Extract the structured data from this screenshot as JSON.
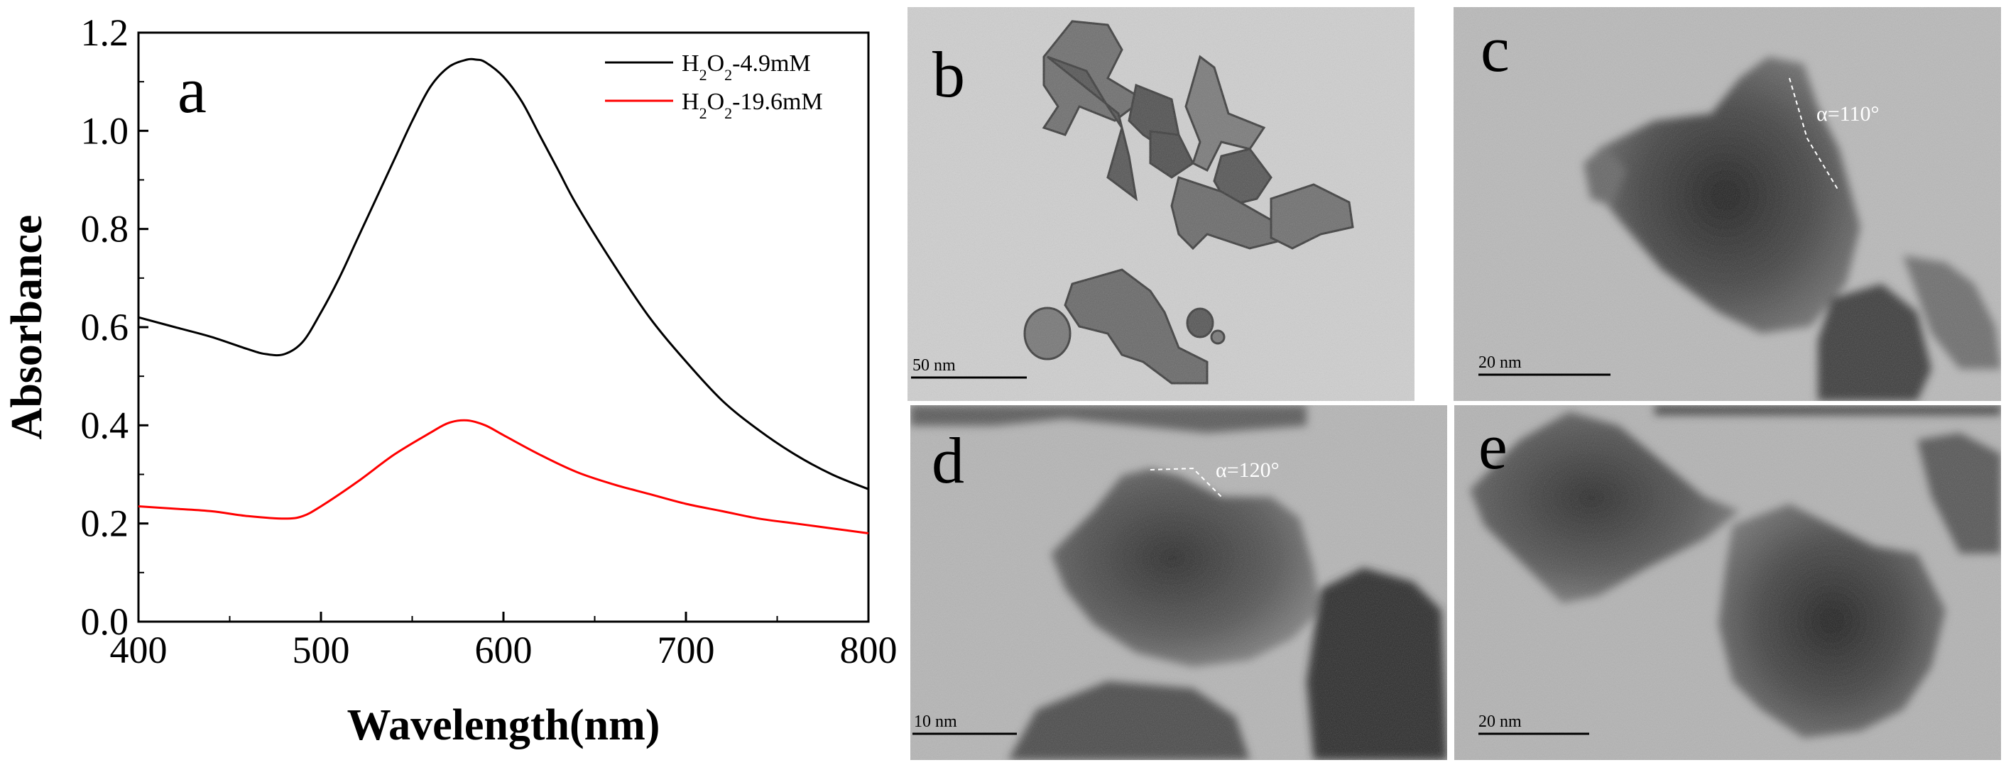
{
  "chart_data": {
    "type": "line",
    "panel_label": "a",
    "xlabel": "Wavelength(nm)",
    "ylabel": "Absorbance",
    "xlim": [
      400,
      800
    ],
    "ylim": [
      0.0,
      1.2
    ],
    "x_ticks": [
      "400",
      "500",
      "600",
      "700",
      "800"
    ],
    "y_ticks": [
      "0.0",
      "0.2",
      "0.4",
      "0.6",
      "0.8",
      "1.0",
      "1.2"
    ],
    "grid": false,
    "legend_position": "top-right",
    "series": [
      {
        "name": "H2O2-4.9mM",
        "legend_main": "H",
        "legend_sub1": "2",
        "legend_mid": "O",
        "legend_sub2": "2",
        "legend_tail": "-4.9mM",
        "color": "#000000",
        "x": [
          400,
          420,
          440,
          460,
          470,
          480,
          490,
          500,
          510,
          520,
          530,
          540,
          550,
          560,
          570,
          580,
          585,
          590,
          600,
          610,
          620,
          630,
          640,
          660,
          680,
          700,
          720,
          740,
          760,
          780,
          800
        ],
        "values": [
          0.62,
          0.6,
          0.58,
          0.555,
          0.545,
          0.545,
          0.57,
          0.63,
          0.7,
          0.78,
          0.86,
          0.94,
          1.02,
          1.09,
          1.13,
          1.145,
          1.145,
          1.14,
          1.11,
          1.06,
          0.99,
          0.92,
          0.85,
          0.73,
          0.62,
          0.53,
          0.45,
          0.39,
          0.34,
          0.3,
          0.27
        ]
      },
      {
        "name": "H2O2-19.6mM",
        "legend_main": "H",
        "legend_sub1": "2",
        "legend_mid": "O",
        "legend_sub2": "2",
        "legend_tail": "-19.6mM",
        "color": "#ff0000",
        "x": [
          400,
          420,
          440,
          460,
          480,
          490,
          500,
          520,
          540,
          560,
          570,
          580,
          590,
          600,
          620,
          640,
          660,
          680,
          700,
          720,
          740,
          760,
          780,
          800
        ],
        "values": [
          0.235,
          0.23,
          0.225,
          0.215,
          0.21,
          0.215,
          0.235,
          0.285,
          0.34,
          0.385,
          0.405,
          0.41,
          0.4,
          0.38,
          0.34,
          0.305,
          0.28,
          0.26,
          0.24,
          0.225,
          0.21,
          0.2,
          0.19,
          0.18
        ]
      }
    ]
  },
  "micrographs": [
    {
      "label": "b",
      "scale_bar": "50 nm"
    },
    {
      "label": "c",
      "scale_bar": "20 nm",
      "angle_label": "α=110°"
    },
    {
      "label": "d",
      "scale_bar": "10 nm",
      "angle_label": "α=120°"
    },
    {
      "label": "e",
      "scale_bar": "20 nm"
    }
  ]
}
